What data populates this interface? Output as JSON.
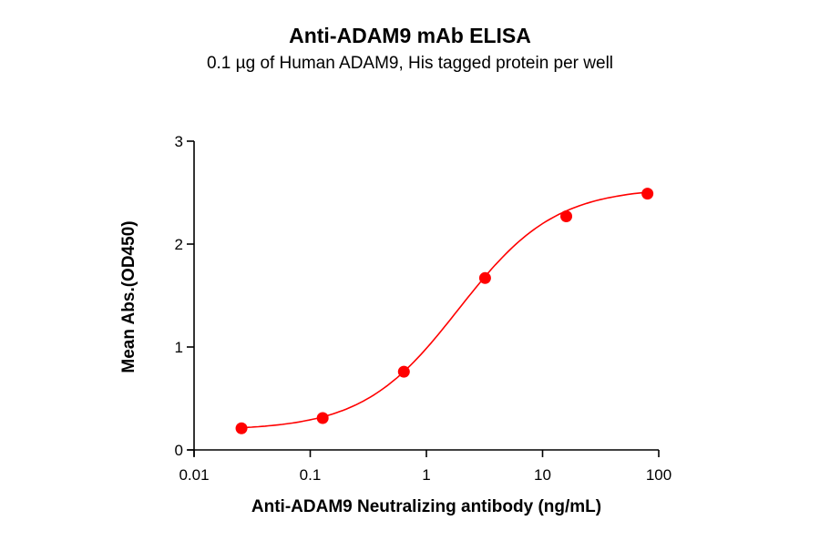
{
  "chart_data": {
    "type": "line",
    "title": "Anti-ADAM9 mAb ELISA",
    "subtitle": "0.1 µg of Human ADAM9, His tagged protein per well",
    "xlabel": "Anti-ADAM9 Neutralizing antibody (ng/mL)",
    "ylabel": "Mean Abs.(OD450)",
    "xscale": "log",
    "xlim": [
      0.01,
      100
    ],
    "ylim": [
      0,
      3
    ],
    "xticks": [
      "0.01",
      "0.1",
      "1",
      "10",
      "100"
    ],
    "yticks": [
      "0",
      "1",
      "2",
      "3"
    ],
    "grid": false,
    "legend": null,
    "series": [
      {
        "name": "Anti-ADAM9 mAb",
        "color": "#ff0000",
        "marker": "circle",
        "fit": "4PL sigmoid",
        "x": [
          0.0256,
          0.128,
          0.64,
          3.2,
          16,
          80
        ],
        "values": [
          0.21,
          0.31,
          0.76,
          1.67,
          2.27,
          2.49
        ]
      }
    ]
  },
  "colors": {
    "series": "#ff0000",
    "axis": "#000000"
  }
}
